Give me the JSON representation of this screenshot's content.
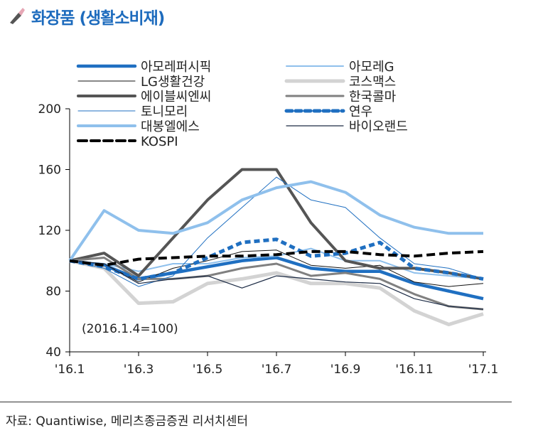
{
  "header": {
    "title": "화장품 (생활소비재)",
    "icon": "lipstick-icon"
  },
  "source": "자료: Quantiwise, 메리츠종금증권 리서치센터",
  "chart_data": {
    "type": "line",
    "title": "화장품 (생활소비재)",
    "annotation": "(2016.1.4=100)",
    "x": [
      "'16.1",
      "'16.2",
      "'16.3",
      "'16.4",
      "'16.5",
      "'16.6",
      "'16.7",
      "'16.8",
      "'16.9",
      "'16.10",
      "'16.11",
      "'16.12",
      "'17.1"
    ],
    "xticks": [
      "'16.1",
      "'16.3",
      "'16.5",
      "'16.7",
      "'16.9",
      "'16.11",
      "'17.1"
    ],
    "yticks": [
      40,
      80,
      120,
      160,
      200
    ],
    "ylim": [
      40,
      200
    ],
    "grid": false,
    "legend": "top",
    "series": [
      {
        "name": "아모레퍼시픽",
        "color": "#1f6fc1",
        "width": 4.5,
        "dash": "",
        "values": [
          100,
          97,
          88,
          92,
          96,
          100,
          102,
          95,
          93,
          93,
          85,
          80,
          75
        ]
      },
      {
        "name": "아모레G",
        "color": "#8fc0ec",
        "width": 2,
        "dash": "",
        "values": [
          100,
          98,
          93,
          98,
          98,
          102,
          103,
          108,
          100,
          100,
          92,
          90,
          88
        ]
      },
      {
        "name": "LG생활건강",
        "color": "#111111",
        "width": 1,
        "dash": "",
        "values": [
          100,
          98,
          86,
          95,
          100,
          106,
          107,
          97,
          95,
          97,
          86,
          83,
          85
        ]
      },
      {
        "name": "코스맥스",
        "color": "#d3d3d3",
        "width": 5,
        "dash": "",
        "values": [
          100,
          95,
          72,
          73,
          85,
          88,
          92,
          85,
          85,
          82,
          67,
          58,
          65
        ]
      },
      {
        "name": "에이블씨엔씨",
        "color": "#555555",
        "width": 4,
        "dash": "",
        "values": [
          100,
          105,
          90,
          115,
          140,
          160,
          160,
          125,
          100,
          95,
          95,
          92,
          88
        ]
      },
      {
        "name": "한국콜마",
        "color": "#808080",
        "width": 3,
        "dash": "",
        "values": [
          100,
          102,
          88,
          88,
          90,
          95,
          98,
          90,
          92,
          88,
          78,
          70,
          68
        ]
      },
      {
        "name": "토니모리",
        "color": "#1f6fc1",
        "width": 1,
        "dash": "",
        "values": [
          100,
          95,
          83,
          90,
          115,
          135,
          155,
          140,
          135,
          115,
          98,
          95,
          88
        ]
      },
      {
        "name": "연우",
        "color": "#1f6fc1",
        "width": 5,
        "dash": "8,5",
        "values": [
          100,
          96,
          88,
          92,
          102,
          112,
          114,
          103,
          105,
          112,
          95,
          92,
          88
        ]
      },
      {
        "name": "대봉엘에스",
        "color": "#8fc0ec",
        "width": 4,
        "dash": "",
        "values": [
          100,
          133,
          120,
          118,
          125,
          140,
          148,
          152,
          145,
          130,
          122,
          118,
          118
        ]
      },
      {
        "name": "바이오랜드",
        "color": "#1c2b45",
        "width": 1.2,
        "dash": "",
        "values": [
          100,
          98,
          85,
          88,
          90,
          82,
          90,
          88,
          86,
          85,
          75,
          70,
          68
        ]
      },
      {
        "name": "KOSPI",
        "color": "#000000",
        "width": 4,
        "dash": "12,6",
        "values": [
          100,
          97,
          101,
          102,
          103,
          103,
          104,
          106,
          106,
          104,
          103,
          105,
          106
        ]
      }
    ]
  }
}
